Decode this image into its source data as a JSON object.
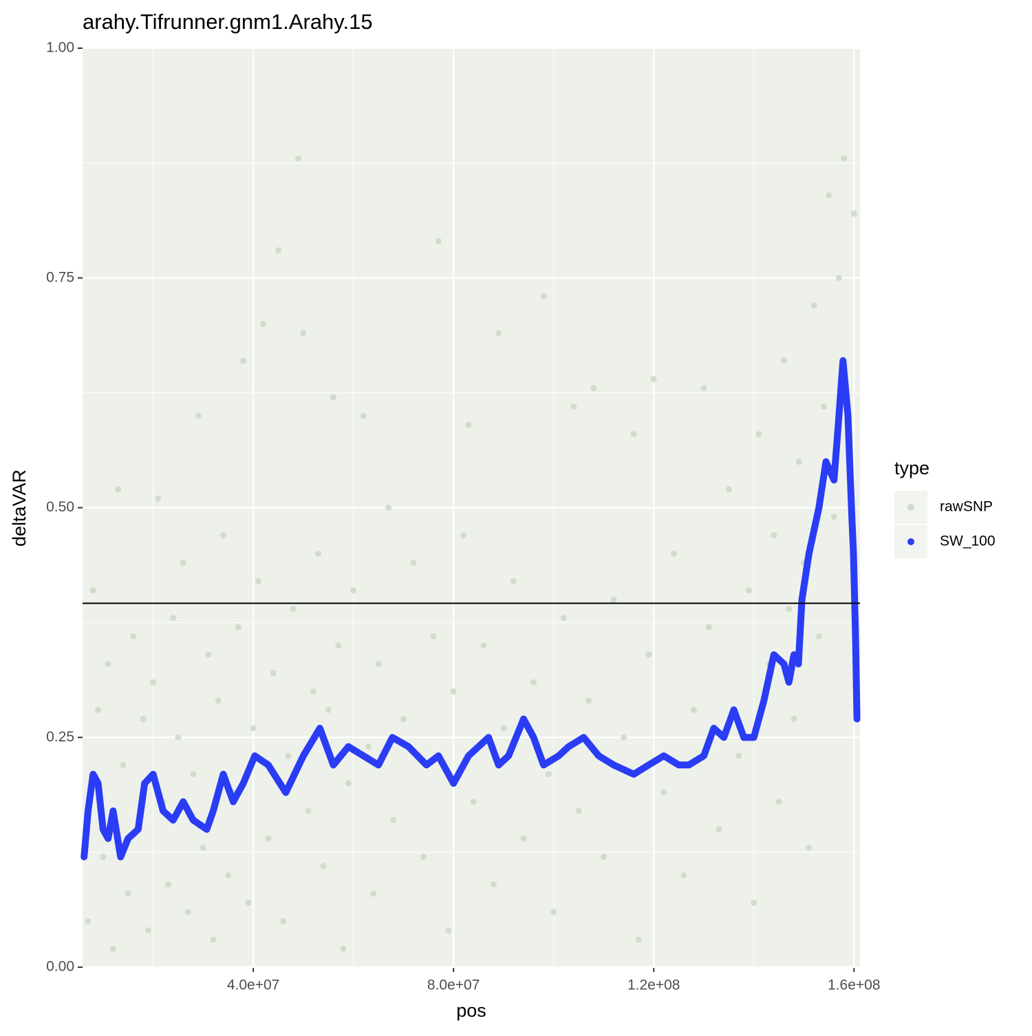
{
  "chart_data": {
    "type": "scatter",
    "title": "arahy.Tifrunner.gnm1.Arahy.15",
    "x_label": "pos",
    "y_label": "deltaVAR",
    "legend_title": "type",
    "legend_position": "right",
    "grid": true,
    "xlim": [
      5900000.0,
      161200000.0
    ],
    "ylim": [
      0,
      1
    ],
    "xticks": [
      {
        "value": 40000000.0,
        "label": "4.0e+07"
      },
      {
        "value": 80000000.0,
        "label": "8.0e+07"
      },
      {
        "value": 120000000.0,
        "label": "1.2e+08"
      },
      {
        "value": 160000000.0,
        "label": "1.6e+08"
      }
    ],
    "yticks": [
      {
        "value": 0,
        "label": "0.00"
      },
      0.25,
      {
        "value": 0.5,
        "label": "0.50"
      },
      0.75,
      {
        "value": 1,
        "label": "1.00"
      }
    ],
    "minor_xticks": [
      20000000.0,
      60000000.0,
      100000000.0,
      140000000.0
    ],
    "minor_yticks": [
      0.125,
      0.375,
      0.625,
      0.875
    ],
    "hline": 0.396,
    "series": [
      {
        "name": "rawSNP",
        "color": "#d3dccb",
        "geom": "point",
        "x": [
          7000000.0,
          8000000.0,
          9000000.0,
          10000000.0,
          11000000.0,
          12000000.0,
          13000000.0,
          14000000.0,
          15000000.0,
          16000000.0,
          17000000.0,
          18000000.0,
          19000000.0,
          20000000.0,
          21000000.0,
          22000000.0,
          23000000.0,
          24000000.0,
          25000000.0,
          26000000.0,
          27000000.0,
          28000000.0,
          29000000.0,
          30000000.0,
          31000000.0,
          32000000.0,
          33000000.0,
          34000000.0,
          35000000.0,
          36000000.0,
          37000000.0,
          38000000.0,
          39000000.0,
          40000000.0,
          41000000.0,
          42000000.0,
          43000000.0,
          44000000.0,
          45000000.0,
          46000000.0,
          47000000.0,
          48000000.0,
          49000000.0,
          50000000.0,
          51000000.0,
          52000000.0,
          53000000.0,
          54000000.0,
          55000000.0,
          56000000.0,
          57000000.0,
          58000000.0,
          59000000.0,
          60000000.0,
          62000000.0,
          63000000.0,
          64000000.0,
          65000000.0,
          67000000.0,
          68000000.0,
          70000000.0,
          72000000.0,
          74000000.0,
          76000000.0,
          77000000.0,
          78000000.0,
          79000000.0,
          80000000.0,
          82000000.0,
          83000000.0,
          84000000.0,
          86000000.0,
          88000000.0,
          89000000.0,
          90000000.0,
          92000000.0,
          94000000.0,
          96000000.0,
          98000000.0,
          99000000.0,
          100000000.0,
          102000000.0,
          104000000.0,
          105000000.0,
          107000000.0,
          108000000.0,
          110000000.0,
          112000000.0,
          114000000.0,
          116000000.0,
          117000000.0,
          119000000.0,
          120000000.0,
          122000000.0,
          124000000.0,
          126000000.0,
          128000000.0,
          130000000.0,
          131000000.0,
          133000000.0,
          135000000.0,
          137000000.0,
          139000000.0,
          140000000.0,
          141000000.0,
          143000000.0,
          144000000.0,
          145000000.0,
          146000000.0,
          147000000.0,
          148000000.0,
          149000000.0,
          150000000.0,
          151000000.0,
          152000000.0,
          153000000.0,
          154000000.0,
          155000000.0,
          156000000.0,
          157000000.0,
          158000000.0,
          159000000.0,
          160000000.0,
          160500000.0
        ],
        "values": [
          0.05,
          0.41,
          0.28,
          0.12,
          0.33,
          0.02,
          0.52,
          0.22,
          0.08,
          0.36,
          0.15,
          0.27,
          0.04,
          0.31,
          0.51,
          0.18,
          0.09,
          0.38,
          0.25,
          0.44,
          0.06,
          0.21,
          0.6,
          0.13,
          0.34,
          0.03,
          0.29,
          0.47,
          0.1,
          0.19,
          0.37,
          0.66,
          0.07,
          0.26,
          0.42,
          0.7,
          0.14,
          0.32,
          0.78,
          0.05,
          0.23,
          0.39,
          0.88,
          0.69,
          0.17,
          0.3,
          0.45,
          0.11,
          0.28,
          0.62,
          0.35,
          0.02,
          0.2,
          0.41,
          0.6,
          0.24,
          0.08,
          0.33,
          0.5,
          0.16,
          0.27,
          0.44,
          0.12,
          0.36,
          0.79,
          0.22,
          0.04,
          0.3,
          0.47,
          0.59,
          0.18,
          0.35,
          0.09,
          0.69,
          0.26,
          0.42,
          0.14,
          0.31,
          0.73,
          0.21,
          0.06,
          0.38,
          0.61,
          0.17,
          0.29,
          0.63,
          0.12,
          0.4,
          0.25,
          0.58,
          0.03,
          0.34,
          0.64,
          0.19,
          0.45,
          0.1,
          0.28,
          0.63,
          0.37,
          0.15,
          0.52,
          0.23,
          0.41,
          0.07,
          0.58,
          0.33,
          0.47,
          0.18,
          0.66,
          0.39,
          0.27,
          0.55,
          0.44,
          0.13,
          0.72,
          0.36,
          0.61,
          0.84,
          0.49,
          0.75,
          0.88,
          0.57,
          0.82,
          0.31
        ]
      },
      {
        "name": "SW_100",
        "color": "#2b3cf5",
        "geom": "line",
        "x": [
          6200000.0,
          7000000.0,
          8000000.0,
          9000000.0,
          10000000.0,
          11000000.0,
          12000000.0,
          13500000.0,
          15000000.0,
          17000000.0,
          18300000.0,
          20000000.0,
          22000000.0,
          24000000.0,
          26000000.0,
          28000000.0,
          30700000.0,
          32000000.0,
          34000000.0,
          36000000.0,
          38000000.0,
          40300000.0,
          43000000.0,
          46500000.0,
          50000000.0,
          53300000.0,
          56000000.0,
          59000000.0,
          62000000.0,
          65000000.0,
          67800000.0,
          71000000.0,
          74600000.0,
          77000000.0,
          80000000.0,
          83000000.0,
          87000000.0,
          89000000.0,
          91000000.0,
          94000000.0,
          96000000.0,
          98000000.0,
          101000000.0,
          103000000.0,
          106000000.0,
          109000000.0,
          112000000.0,
          116000000.0,
          119000000.0,
          122000000.0,
          125000000.0,
          127000000.0,
          130000000.0,
          132000000.0,
          134000000.0,
          136000000.0,
          138000000.0,
          140000000.0,
          142000000.0,
          144000000.0,
          146000000.0,
          147000000.0,
          148000000.0,
          148900000.0,
          149600000.0,
          151000000.0,
          153000000.0,
          154400000.0,
          156000000.0,
          157000000.0,
          157800000.0,
          158800000.0,
          159500000.0,
          159900000.0,
          160300000.0,
          160600000.0
        ],
        "values": [
          0.12,
          0.17,
          0.21,
          0.2,
          0.15,
          0.14,
          0.17,
          0.12,
          0.14,
          0.15,
          0.2,
          0.21,
          0.17,
          0.16,
          0.18,
          0.16,
          0.15,
          0.17,
          0.21,
          0.18,
          0.2,
          0.23,
          0.22,
          0.19,
          0.23,
          0.26,
          0.22,
          0.24,
          0.23,
          0.22,
          0.25,
          0.24,
          0.22,
          0.23,
          0.2,
          0.23,
          0.25,
          0.22,
          0.23,
          0.27,
          0.25,
          0.22,
          0.23,
          0.24,
          0.25,
          0.23,
          0.22,
          0.21,
          0.22,
          0.23,
          0.22,
          0.22,
          0.23,
          0.26,
          0.25,
          0.28,
          0.25,
          0.25,
          0.29,
          0.34,
          0.33,
          0.31,
          0.34,
          0.33,
          0.4,
          0.45,
          0.5,
          0.55,
          0.53,
          0.6,
          0.66,
          0.6,
          0.5,
          0.45,
          0.36,
          0.27
        ]
      }
    ]
  }
}
